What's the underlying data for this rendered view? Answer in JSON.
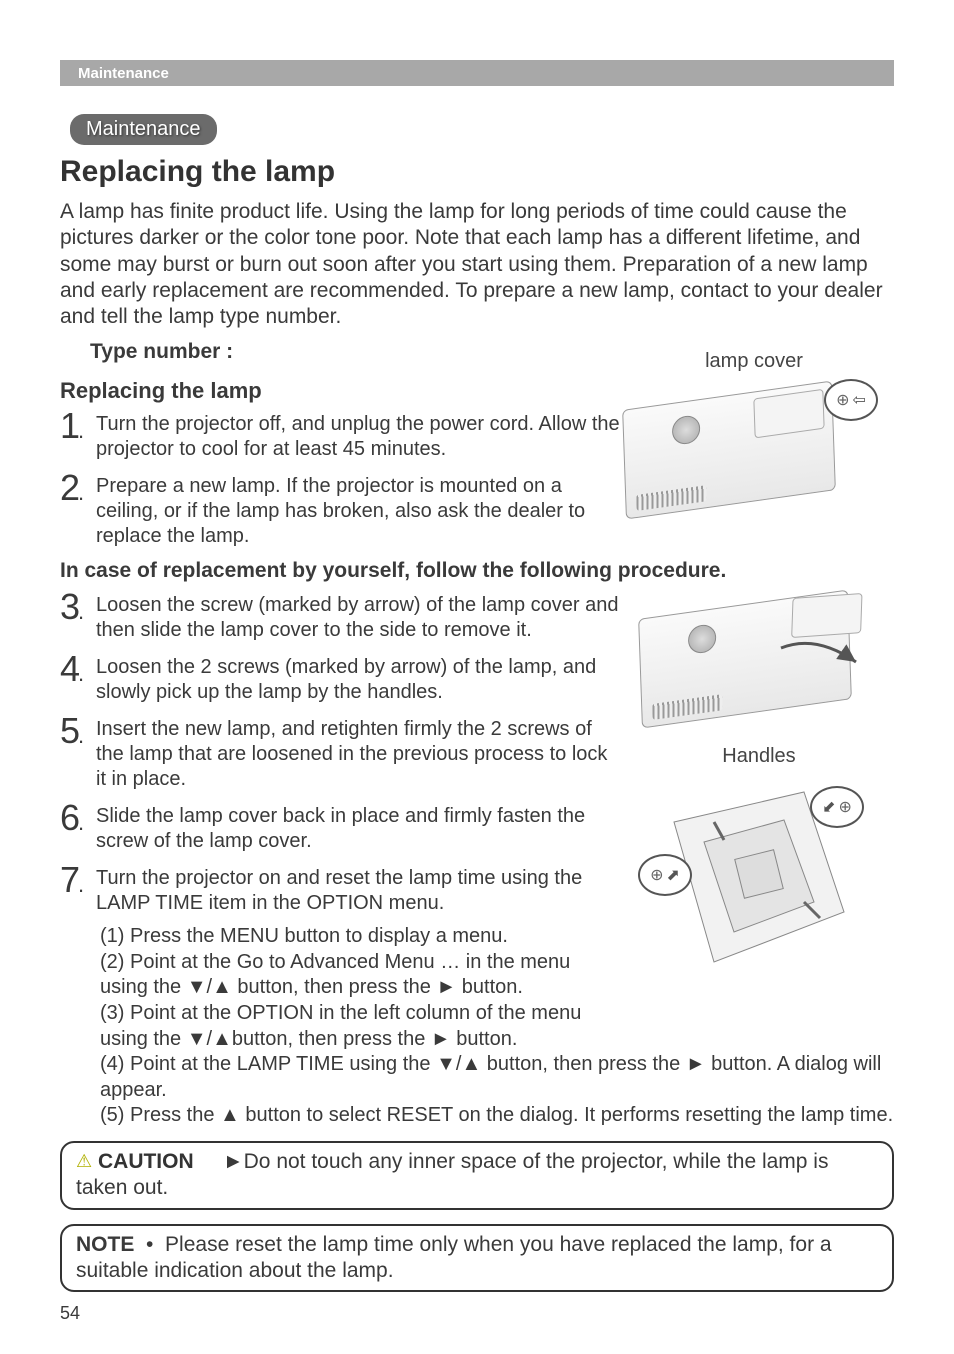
{
  "header": {
    "crumb": "Maintenance"
  },
  "pill": "Maintenance",
  "title": "Replacing the lamp",
  "intro": "A lamp has finite product life. Using the lamp for long periods of time could cause the pictures darker or the color tone poor. Note that each lamp has a different lifetime, and some may burst or burn out soon after you start using them. Preparation of a new lamp and early replacement are recommended. To prepare a new lamp, contact to your dealer and tell the lamp type number.",
  "type_number_label": "Type number :",
  "subheading": "Replacing the lamp",
  "steps_a": [
    {
      "n": "1",
      "t": "Turn the projector off, and unplug the power cord. Allow the projector to cool for at least 45 minutes."
    },
    {
      "n": "2",
      "t": "Prepare a new lamp. If the projector is mounted on a ceiling, or if the lamp has broken, also ask the dealer to replace the lamp."
    }
  ],
  "self_line": "In case of replacement by yourself, follow the following procedure.",
  "steps_b": [
    {
      "n": "3",
      "t": "Loosen the screw (marked by arrow) of the lamp cover and then slide the lamp cover to the side to remove it."
    },
    {
      "n": "4",
      "t": "Loosen the 2 screws (marked by arrow) of the lamp, and slowly pick up the lamp by the handles."
    },
    {
      "n": "5",
      "t": "Insert the new lamp, and retighten firmly the 2 screws of the lamp that are loosened in the previous process to lock it in place."
    },
    {
      "n": "6",
      "t": "Slide the lamp cover back in place and firmly fasten the screw of the lamp cover."
    },
    {
      "n": "7",
      "t": "Turn the projector on and reset the lamp time using the LAMP TIME item in the OPTION menu."
    }
  ],
  "substeps_narrow": [
    "(1) Press the MENU button to display a menu.",
    "(2) Point at the Go to Advanced Menu … in the menu using the ▼/▲ button, then press the ► button.",
    "(3) Point at the OPTION in the left column of the menu using the ▼/▲button, then press the ► button."
  ],
  "substeps_wide": [
    "(4) Point at the LAMP TIME using the ▼/▲ button, then press the ► button. A dialog will appear.",
    "(5) Press the ▲ button to select RESET on the dialog. It performs resetting the lamp time."
  ],
  "caution": {
    "label": "CAUTION",
    "arrow": "►",
    "text": "Do not touch any inner space of the projector, while the lamp is taken out."
  },
  "note": {
    "label": "NOTE",
    "text": "Please reset the lamp time only when you have replaced the lamp, for a suitable indication about the lamp."
  },
  "labels": {
    "lamp_cover": "lamp cover",
    "handles": "Handles"
  },
  "page": "54",
  "colors": {
    "header_bg": "#a8a8a8",
    "pill_bg": "#6b6b6b",
    "text": "#3a3a3a"
  }
}
